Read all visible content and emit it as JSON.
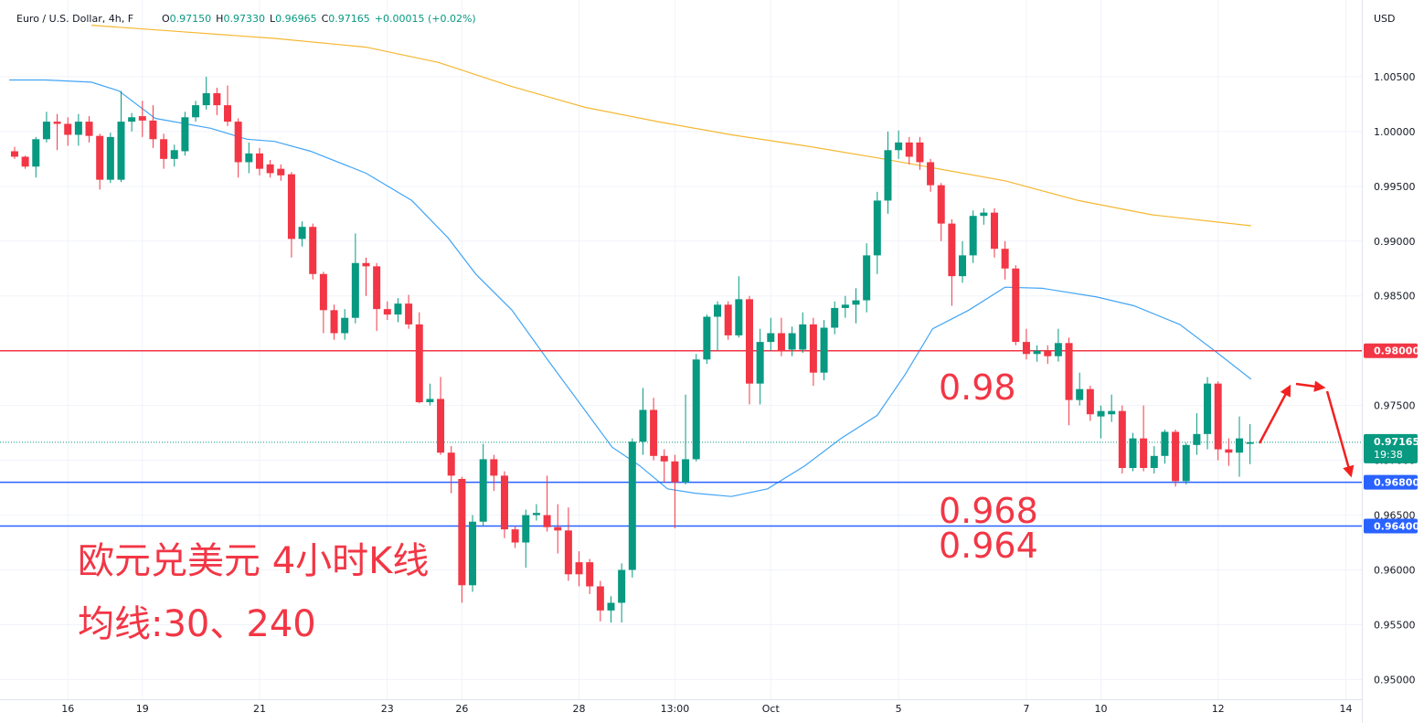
{
  "chart_data": {
    "type": "candlestick",
    "symbol": "Euro / U.S. Dollar, 4h, F",
    "quote": [
      {
        "key": "O",
        "value": "0.97150"
      },
      {
        "key": "H",
        "value": "0.97330"
      },
      {
        "key": "L",
        "value": "0.96965"
      },
      {
        "key": "C",
        "value": "0.97165"
      }
    ],
    "change": "+0.00015 (+0.02%)",
    "currency": "USD",
    "up_color": "#089981",
    "down_color": "#f23645",
    "open": [
      0.9982,
      0.9977,
      0.9968,
      0.9993,
      1.0009,
      1.0007,
      0.9997,
      1.0009,
      0.9996,
      0.9956,
      0.9956,
      1.0009,
      1.0014,
      1.001,
      0.9993,
      0.9975,
      0.9982,
      1.0013,
      1.0024,
      1.0035,
      1.0024,
      1.0009,
      0.9972,
      0.998,
      0.997,
      0.9966,
      0.9961,
      0.9902,
      0.9913,
      0.987,
      0.9837,
      0.9816,
      0.983,
      0.988,
      0.9877,
      0.9838,
      0.9833,
      0.9843,
      0.9824,
      0.9753,
      0.9756,
      0.9707,
      0.9683,
      0.9586,
      0.9644,
      0.9701,
      0.9686,
      0.9637,
      0.9625,
      0.965,
      0.965,
      0.9639,
      0.9636,
      0.9607,
      0.9607,
      0.9585,
      0.9563,
      0.957,
      0.96,
      0.9717,
      0.9746,
      0.9704,
      0.9699,
      0.968,
      0.9701,
      0.9792,
      0.9831,
      0.9842,
      0.9814,
      0.9847,
      0.977,
      0.9808,
      0.9816,
      0.9801,
      0.9801,
      0.9824,
      0.978,
      0.9821,
      0.9839,
      0.9842,
      0.9846,
      0.9887,
      0.9937,
      0.9983,
      0.999,
      0.999,
      0.9972,
      0.9951,
      0.9916,
      0.9868,
      0.9887,
      0.9923,
      0.9926,
      0.9893,
      0.9875,
      0.9808,
      0.9797,
      0.98,
      0.9795,
      0.9807,
      0.9755,
      0.9765,
      0.974,
      0.9742,
      0.9745,
      0.9693,
      0.972,
      0.9693,
      0.9704,
      0.9726,
      0.9681,
      0.9714,
      0.9724,
      0.977,
      0.971,
      0.9707,
      0.9715
    ],
    "high": [
      0.9986,
      0.9978,
      0.9995,
      1.0018,
      1.0016,
      1.0013,
      1.0016,
      1.0014,
      0.9998,
      0.9999,
      1.0037,
      1.0017,
      1.0028,
      1.0024,
      0.9998,
      0.9988,
      1.0018,
      1.0028,
      1.005,
      1.004,
      1.0042,
      1.0012,
      0.999,
      0.9985,
      0.9974,
      0.997,
      0.9963,
      0.9918,
      0.9916,
      0.9872,
      0.9842,
      0.9838,
      0.9907,
      0.9885,
      0.988,
      0.9845,
      0.9848,
      0.9851,
      0.9835,
      0.977,
      0.9776,
      0.9713,
      0.9685,
      0.965,
      0.9715,
      0.9705,
      0.969,
      0.964,
      0.9655,
      0.966,
      0.9686,
      0.966,
      0.9657,
      0.9617,
      0.961,
      0.959,
      0.9576,
      0.9606,
      0.972,
      0.9766,
      0.9757,
      0.971,
      0.9705,
      0.976,
      0.9797,
      0.9833,
      0.9845,
      0.9845,
      0.9868,
      0.985,
      0.982,
      0.983,
      0.983,
      0.9822,
      0.9835,
      0.983,
      0.9828,
      0.9845,
      0.985,
      0.9857,
      0.9898,
      0.9945,
      1.0,
      1.0001,
      0.9995,
      0.9995,
      0.9975,
      0.9953,
      0.992,
      0.99,
      0.9928,
      0.993,
      0.993,
      0.99,
      0.9878,
      0.982,
      0.9805,
      0.9805,
      0.982,
      0.9812,
      0.978,
      0.9768,
      0.975,
      0.976,
      0.975,
      0.9725,
      0.975,
      0.9713,
      0.9728,
      0.9728,
      0.9716,
      0.9743,
      0.9776,
      0.9772,
      0.972,
      0.974,
      0.9733
    ],
    "low": [
      0.9975,
      0.9966,
      0.9958,
      0.999,
      0.9983,
      0.9987,
      0.9987,
      0.999,
      0.9947,
      0.9953,
      0.9954,
      1.0,
      0.9995,
      0.9985,
      0.9966,
      0.9968,
      0.9978,
      1.0009,
      1.002,
      1.0015,
      1.0005,
      0.9958,
      0.9962,
      0.996,
      0.9958,
      0.9955,
      0.9885,
      0.9895,
      0.9865,
      0.9816,
      0.981,
      0.981,
      0.9825,
      0.985,
      0.9818,
      0.9828,
      0.9826,
      0.982,
      0.9752,
      0.975,
      0.9705,
      0.967,
      0.957,
      0.958,
      0.964,
      0.9672,
      0.9629,
      0.962,
      0.9602,
      0.9645,
      0.9635,
      0.9615,
      0.959,
      0.9585,
      0.9578,
      0.9553,
      0.9552,
      0.9552,
      0.9593,
      0.9705,
      0.97,
      0.968,
      0.9638,
      0.9678,
      0.9699,
      0.9788,
      0.98,
      0.981,
      0.9812,
      0.9751,
      0.9751,
      0.98,
      0.9795,
      0.9795,
      0.9798,
      0.9768,
      0.9773,
      0.9815,
      0.983,
      0.9825,
      0.9835,
      0.987,
      0.9925,
      0.9975,
      0.997,
      0.9965,
      0.9945,
      0.99,
      0.9841,
      0.9862,
      0.988,
      0.9915,
      0.9885,
      0.9865,
      0.9805,
      0.9792,
      0.979,
      0.9788,
      0.979,
      0.9732,
      0.975,
      0.9736,
      0.972,
      0.9735,
      0.9688,
      0.969,
      0.969,
      0.9688,
      0.9697,
      0.9676,
      0.9678,
      0.9705,
      0.971,
      0.97,
      0.9695,
      0.9685,
      0.96965
    ],
    "close": [
      0.9977,
      0.9968,
      0.9993,
      1.0009,
      1.0007,
      0.9997,
      1.0009,
      0.9996,
      0.9956,
      0.9995,
      1.0009,
      1.0013,
      1.001,
      0.9993,
      0.9975,
      0.9983,
      1.0013,
      1.0024,
      1.0035,
      1.0024,
      1.0009,
      0.9972,
      0.998,
      0.9966,
      0.9962,
      0.996,
      0.9902,
      0.9913,
      0.987,
      0.9837,
      0.9816,
      0.983,
      0.988,
      0.9877,
      0.9838,
      0.9833,
      0.9843,
      0.9824,
      0.9753,
      0.9756,
      0.9707,
      0.9686,
      0.9586,
      0.9644,
      0.9701,
      0.9686,
      0.9637,
      0.9625,
      0.965,
      0.9652,
      0.9639,
      0.9636,
      0.9596,
      0.9596,
      0.9585,
      0.9563,
      0.957,
      0.96,
      0.9717,
      0.9746,
      0.9704,
      0.9699,
      0.968,
      0.9701,
      0.9792,
      0.9831,
      0.9842,
      0.9814,
      0.9847,
      0.977,
      0.9808,
      0.9816,
      0.98,
      0.9816,
      0.9824,
      0.978,
      0.9821,
      0.9839,
      0.9842,
      0.9846,
      0.9887,
      0.9937,
      0.9983,
      0.999,
      0.9977,
      0.9972,
      0.9951,
      0.9916,
      0.9868,
      0.9887,
      0.9923,
      0.9926,
      0.9893,
      0.9875,
      0.9808,
      0.9797,
      0.98,
      0.9795,
      0.9807,
      0.9755,
      0.9765,
      0.9742,
      0.9745,
      0.9745,
      0.9693,
      0.972,
      0.9693,
      0.9704,
      0.9726,
      0.9681,
      0.9714,
      0.9724,
      0.977,
      0.971,
      0.9707,
      0.972,
      0.97165
    ],
    "series": [
      {
        "color": "#42a5f5",
        "x": [
          -0.5,
          2.9,
          7.2,
          9.8,
          13.2,
          18.4,
          21.8,
          24.4,
          27.8,
          33.0,
          37.3,
          40.7,
          43.3,
          46.7,
          50.1,
          53.6,
          56.1,
          58.7,
          61.3,
          63.9,
          67.3,
          70.7,
          74.2,
          77.6,
          81.0,
          83.6,
          86.2,
          89.6,
          93.0,
          96.5,
          101.6,
          105.1,
          109.4,
          112.8,
          116.1
        ],
        "values": [
          1.0047,
          1.0047,
          1.0045,
          1.0037,
          1.0012,
          1.0003,
          0.9993,
          0.9991,
          0.9982,
          0.9962,
          0.9937,
          0.9903,
          0.987,
          0.9837,
          0.9791,
          0.9745,
          0.9712,
          0.9695,
          0.9674,
          0.967,
          0.9667,
          0.9674,
          0.9695,
          0.972,
          0.9741,
          0.9778,
          0.982,
          0.9837,
          0.9858,
          0.9857,
          0.9849,
          0.9841,
          0.9824,
          0.9799,
          0.9774
        ]
      },
      {
        "color": "#f5b731",
        "x": [
          7.2,
          15.8,
          24.4,
          33.0,
          39.8,
          46.7,
          53.6,
          60.4,
          67.3,
          74.2,
          81.0,
          87.9,
          93.0,
          99.9,
          106.8,
          116.1
        ],
        "values": [
          1.0097,
          1.0091,
          1.0085,
          1.0077,
          1.0063,
          1.0041,
          1.0022,
          1.0009,
          0.9997,
          0.9987,
          0.9976,
          0.9964,
          0.9955,
          0.9937,
          0.9924,
          0.9914
        ]
      }
    ],
    "xlim": [
      -1.37,
      126.5
    ],
    "xticks": [
      {
        "value": 5,
        "label": "16"
      },
      {
        "value": 12,
        "label": "19"
      },
      {
        "value": 23,
        "label": "21"
      },
      {
        "value": 35,
        "label": "23"
      },
      {
        "value": 42,
        "label": "26"
      },
      {
        "value": 53,
        "label": "28"
      },
      {
        "value": 62,
        "label": "13:00"
      },
      {
        "value": 71,
        "label": "Oct"
      },
      {
        "value": 83,
        "label": "5"
      },
      {
        "value": 95,
        "label": "7"
      },
      {
        "value": 102,
        "label": "10"
      },
      {
        "value": 113,
        "label": "12"
      },
      {
        "value": 125,
        "label": "14"
      }
    ],
    "ylim": [
      0.9482,
      1.012
    ],
    "yticks": [
      {
        "value": 0.95,
        "label": "0.95000"
      },
      {
        "value": 0.955,
        "label": "0.95500"
      },
      {
        "value": 0.96,
        "label": "0.96000"
      },
      {
        "value": 0.965,
        "label": "0.96500"
      },
      {
        "value": 0.97,
        "label": "0.97000"
      },
      {
        "value": 0.975,
        "label": "0.97500"
      },
      {
        "value": 0.98,
        "label": "0.98000"
      },
      {
        "value": 0.985,
        "label": "0.98500"
      },
      {
        "value": 0.99,
        "label": "0.99000"
      },
      {
        "value": 0.995,
        "label": "0.99500"
      },
      {
        "value": 1.0,
        "label": "1.00000"
      },
      {
        "value": 1.005,
        "label": "1.00500"
      }
    ],
    "grid": true,
    "price_lines": [
      {
        "value": 0.98,
        "label": "0.98000",
        "color": "#f23645"
      },
      {
        "value": 0.968,
        "label": "0.96800",
        "color": "#2962ff"
      },
      {
        "value": 0.964,
        "label": "0.96400",
        "color": "#2962ff"
      }
    ],
    "last_price": {
      "value": 0.97165,
      "countdown": "19:38",
      "color": "#089981"
    },
    "annotations": [
      "0.98",
      "0.968",
      "0.964",
      "欧元兑美元 4小时K线",
      "均线:30、240"
    ],
    "annotation_color": "#f23645"
  }
}
